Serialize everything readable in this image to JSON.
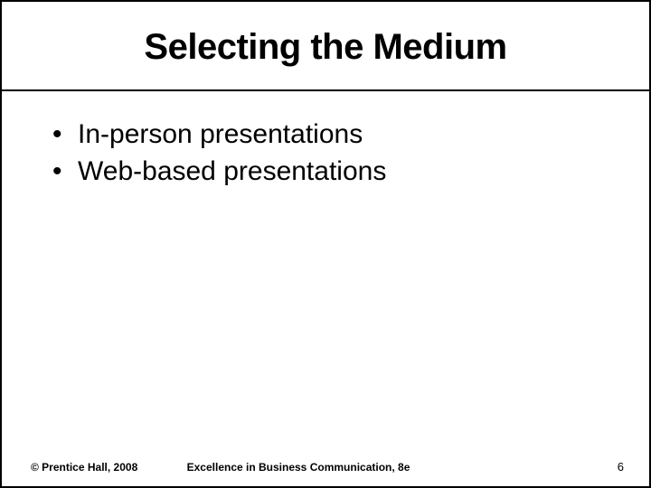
{
  "slide": {
    "title": "Selecting the Medium",
    "bullets": [
      "In-person presentations",
      "Web-based presentations"
    ],
    "footer": {
      "copyright": "© Prentice Hall, 2008",
      "book_title": "Excellence in Business Communication, 8e",
      "page_number": "6"
    },
    "styles": {
      "title_font_family": "Verdana",
      "title_font_size_pt": 40,
      "title_font_weight": 700,
      "bullet_font_family": "Arial",
      "bullet_font_size_pt": 30,
      "footer_font_size_pt": 12,
      "border_color": "#000000",
      "background_color": "#ffffff",
      "text_color": "#000000"
    }
  }
}
